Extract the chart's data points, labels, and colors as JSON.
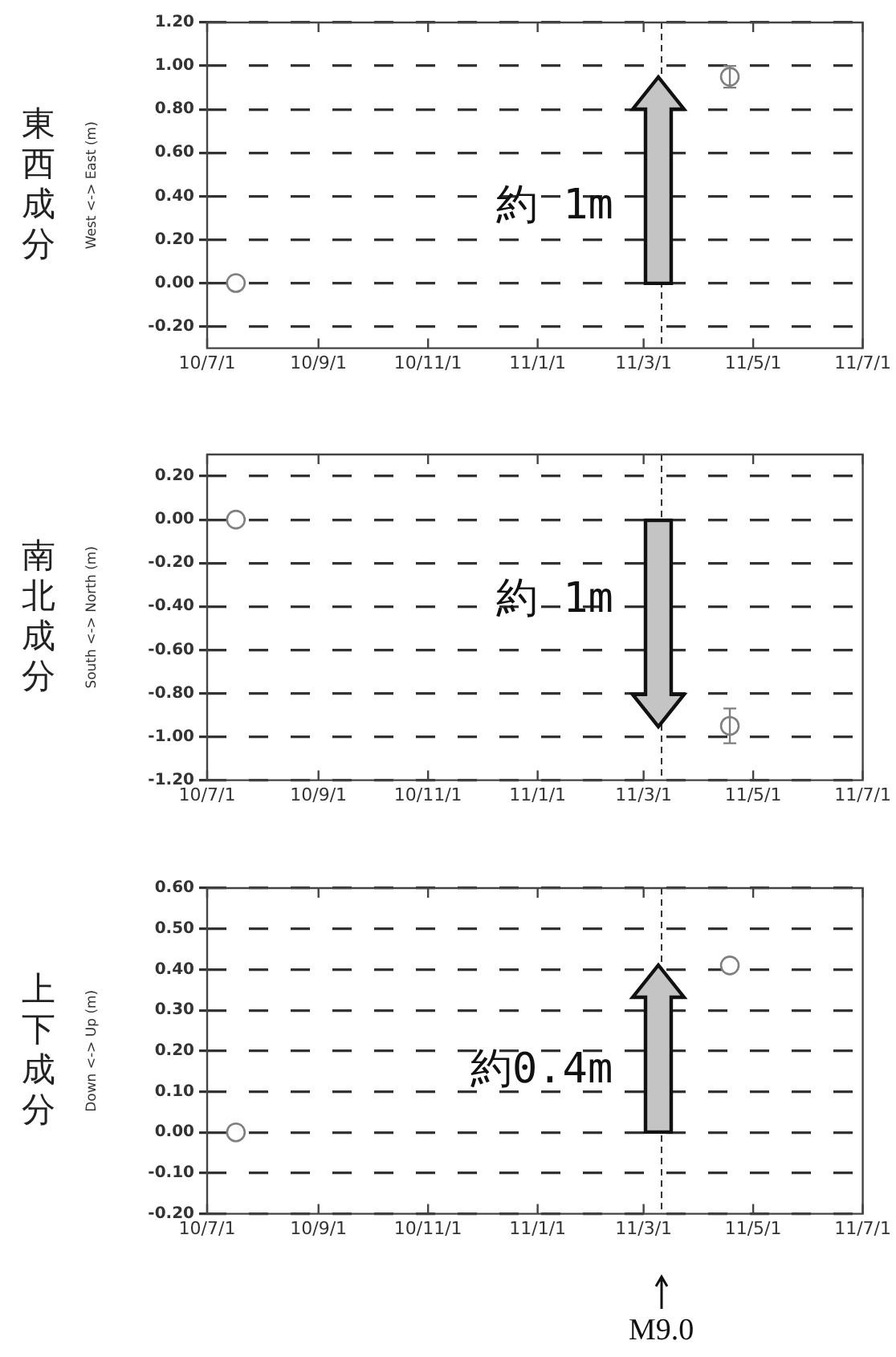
{
  "chart_data": [
    {
      "type": "scatter",
      "title": "東西成分",
      "ylabel": "West <-> East (m)",
      "marker": "circle",
      "grid": "y",
      "series": [
        {
          "color": "#7f7f7f",
          "x": [
            "2010-07-17",
            "2011-04-18"
          ],
          "values": [
            0,
            0.95
          ],
          "errors": [
            null,
            0.05
          ]
        }
      ],
      "xlim": [
        "2010-07-01",
        "2011-07-01"
      ],
      "xticks": [
        {
          "value": "2010-07-01",
          "label": "10/7/1"
        },
        {
          "value": "2010-09-01",
          "label": "10/9/1"
        },
        {
          "value": "2010-11-01",
          "label": "10/11/1"
        },
        {
          "value": "2011-01-01",
          "label": "11/1/1"
        },
        {
          "value": "2011-03-01",
          "label": "11/3/1"
        },
        {
          "value": "2011-05-01",
          "label": "11/5/1"
        },
        {
          "value": "2011-07-01",
          "label": "11/7/1"
        }
      ],
      "ylim": [
        -0.3,
        1.2
      ],
      "yticks": [
        {
          "value": -0.2,
          "label": "-0.20"
        },
        {
          "value": 0,
          "label": "0.00"
        },
        {
          "value": 0.2,
          "label": "0.20"
        },
        {
          "value": 0.4,
          "label": "0.40"
        },
        {
          "value": 0.6,
          "label": "0.60"
        },
        {
          "value": 0.8,
          "label": "0.80"
        },
        {
          "value": 1,
          "label": "1.00"
        },
        {
          "value": 1.2,
          "label": "1.20"
        }
      ],
      "ref_lines": [
        {
          "axis": "x",
          "value": "2011-03-11",
          "label": null,
          "line_style": "dashed",
          "color": "#333333"
        }
      ],
      "annotations": [
        "約 1m"
      ]
    },
    {
      "type": "scatter",
      "title": "南北成分",
      "ylabel": "South <-> North (m)",
      "marker": "circle",
      "grid": "y",
      "series": [
        {
          "color": "#7f7f7f",
          "x": [
            "2010-07-17",
            "2011-04-18"
          ],
          "values": [
            0,
            -0.95
          ],
          "errors": [
            null,
            0.08
          ]
        }
      ],
      "xlim": [
        "2010-07-01",
        "2011-07-01"
      ],
      "xticks": [
        {
          "value": "2010-07-01",
          "label": "10/7/1"
        },
        {
          "value": "2010-09-01",
          "label": "10/9/1"
        },
        {
          "value": "2010-11-01",
          "label": "10/11/1"
        },
        {
          "value": "2011-01-01",
          "label": "11/1/1"
        },
        {
          "value": "2011-03-01",
          "label": "11/3/1"
        },
        {
          "value": "2011-05-01",
          "label": "11/5/1"
        },
        {
          "value": "2011-07-01",
          "label": "11/7/1"
        }
      ],
      "ylim": [
        -1.2,
        0.3
      ],
      "yticks": [
        {
          "value": -1.2,
          "label": "-1.20"
        },
        {
          "value": -1,
          "label": "-1.00"
        },
        {
          "value": -0.8,
          "label": "-0.80"
        },
        {
          "value": -0.6,
          "label": "-0.60"
        },
        {
          "value": -0.4,
          "label": "-0.40"
        },
        {
          "value": -0.2,
          "label": "-0.20"
        },
        {
          "value": 0,
          "label": "0.00"
        },
        {
          "value": 0.2,
          "label": "0.20"
        }
      ],
      "ref_lines": [
        {
          "axis": "x",
          "value": "2011-03-11",
          "label": null,
          "line_style": "dashed",
          "color": "#333333"
        }
      ],
      "annotations": [
        "約 1m"
      ]
    },
    {
      "type": "scatter",
      "title": "上下成分",
      "ylabel": "Down <-> Up (m)",
      "marker": "circle",
      "grid": "y",
      "series": [
        {
          "color": "#7f7f7f",
          "x": [
            "2010-07-17",
            "2011-04-18"
          ],
          "values": [
            0,
            0.41
          ]
        }
      ],
      "xlim": [
        "2010-07-01",
        "2011-07-01"
      ],
      "xticks": [
        {
          "value": "2010-07-01",
          "label": "10/7/1"
        },
        {
          "value": "2010-09-01",
          "label": "10/9/1"
        },
        {
          "value": "2010-11-01",
          "label": "10/11/1"
        },
        {
          "value": "2011-01-01",
          "label": "11/1/1"
        },
        {
          "value": "2011-03-01",
          "label": "11/3/1"
        },
        {
          "value": "2011-05-01",
          "label": "11/5/1"
        },
        {
          "value": "2011-07-01",
          "label": "11/7/1"
        }
      ],
      "ylim": [
        -0.2,
        0.6
      ],
      "yticks": [
        {
          "value": -0.2,
          "label": "-0.20"
        },
        {
          "value": -0.1,
          "label": "-0.10"
        },
        {
          "value": 0,
          "label": "0.00"
        },
        {
          "value": 0.1,
          "label": "0.10"
        },
        {
          "value": 0.2,
          "label": "0.20"
        },
        {
          "value": 0.3,
          "label": "0.30"
        },
        {
          "value": 0.4,
          "label": "0.40"
        },
        {
          "value": 0.5,
          "label": "0.50"
        },
        {
          "value": 0.6,
          "label": "0.60"
        }
      ],
      "ref_lines": [
        {
          "axis": "x",
          "value": "2011-03-11",
          "label": null,
          "line_style": "dashed",
          "color": "#333333"
        }
      ],
      "annotations": [
        "約0.4m",
        "M9.0"
      ]
    }
  ]
}
